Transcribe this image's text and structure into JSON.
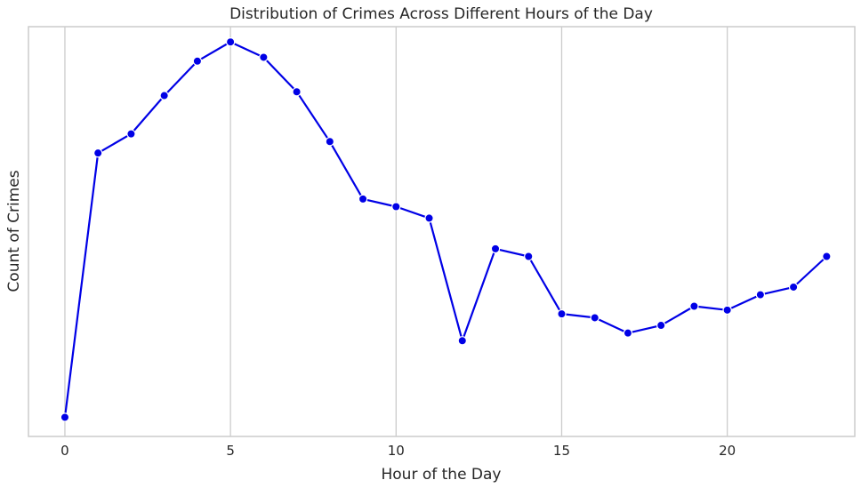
{
  "chart_data": {
    "type": "line",
    "title": "Distribution of Crimes Across Different Hours of the Day",
    "xlabel": "Hour of the Day",
    "ylabel": "Count of Crimes",
    "x": [
      0,
      1,
      2,
      3,
      4,
      5,
      6,
      7,
      8,
      9,
      10,
      11,
      12,
      13,
      14,
      15,
      16,
      17,
      18,
      19,
      20,
      21,
      22,
      23
    ],
    "series": [
      {
        "values": [
          1.0,
          7.9,
          8.4,
          9.4,
          10.3,
          10.8,
          10.4,
          9.5,
          8.2,
          6.7,
          6.5,
          6.2,
          3.0,
          5.4,
          5.2,
          3.7,
          3.6,
          3.2,
          3.4,
          3.9,
          3.8,
          4.2,
          4.4,
          5.2
        ],
        "color": "#0000e6"
      }
    ],
    "xlim": [
      -1.1,
      23.85
    ],
    "ylim": [
      0.5,
      11.2
    ],
    "xticks": [
      0,
      5,
      10,
      15,
      20
    ],
    "yticks_visible": false,
    "grid": "vertical",
    "legend": "none"
  }
}
